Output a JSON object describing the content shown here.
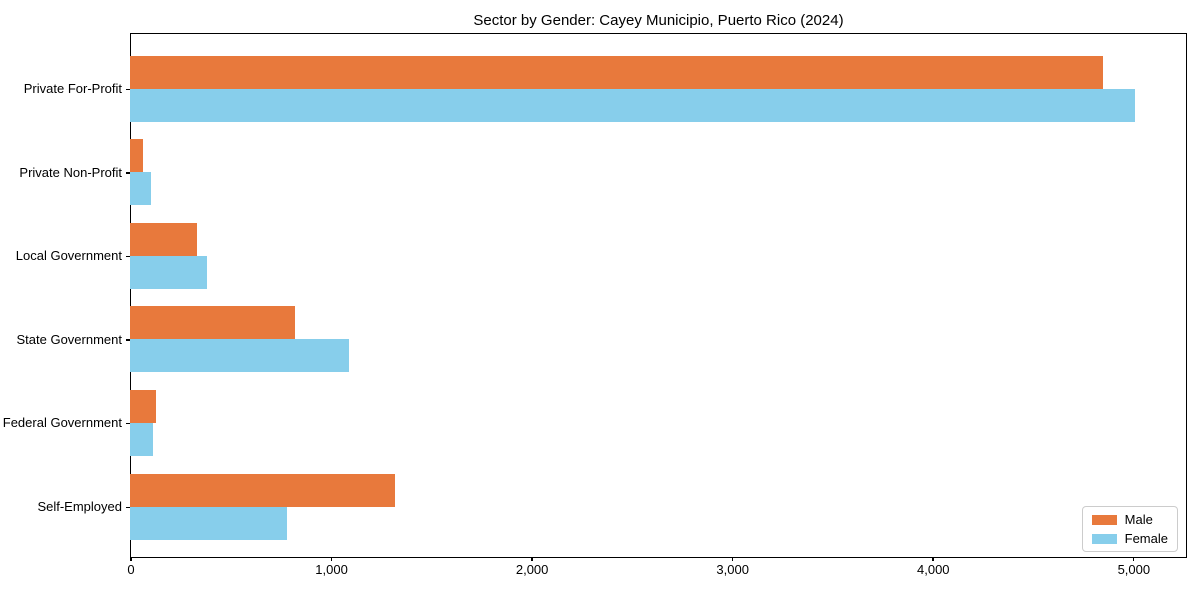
{
  "chart_data": {
    "type": "bar",
    "orientation": "horizontal",
    "title": "Sector by Gender: Cayey Municipio, Puerto Rico (2024)",
    "categories": [
      "Private For-Profit",
      "Private Non-Profit",
      "Local Government",
      "State Government",
      "Federal Government",
      "Self-Employed"
    ],
    "series": [
      {
        "name": "Male",
        "color": "#e8793c",
        "values": [
          4855,
          68,
          336,
          823,
          132,
          1322
        ]
      },
      {
        "name": "Female",
        "color": "#87ceeb",
        "values": [
          5015,
          108,
          386,
          1093,
          119,
          785
        ]
      }
    ],
    "xlabel": "",
    "ylabel": "",
    "xlim": [
      0,
      5270
    ],
    "x_ticks": [
      {
        "value": 0,
        "label": "0"
      },
      {
        "value": 1000,
        "label": "1,000"
      },
      {
        "value": 2000,
        "label": "2,000"
      },
      {
        "value": 3000,
        "label": "3,000"
      },
      {
        "value": 4000,
        "label": "4,000"
      },
      {
        "value": 5000,
        "label": "5,000"
      }
    ],
    "grid": false,
    "legend": {
      "position": "lower right"
    },
    "colors": {
      "spine": "#000000",
      "background": "#ffffff"
    }
  }
}
